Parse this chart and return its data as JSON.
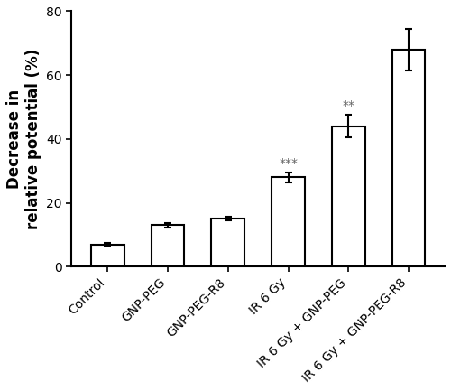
{
  "categories": [
    "Control",
    "GNP-PEG",
    "GNP-PEG-R8",
    "IR 6 Gy",
    "IR 6 Gy + GNP-PEG",
    "IR 6 Gy + GNP-PEG-R8"
  ],
  "values": [
    7.0,
    13.0,
    15.2,
    28.0,
    44.0,
    68.0
  ],
  "errors": [
    0.5,
    0.7,
    0.6,
    1.5,
    3.5,
    6.5
  ],
  "significance": [
    "",
    "",
    "",
    "***",
    "**",
    ""
  ],
  "ylabel": "Decrease in\nrelative potential (%)",
  "ylim": [
    0,
    80
  ],
  "yticks": [
    0,
    20,
    40,
    60,
    80
  ],
  "bar_color": "#ffffff",
  "bar_edgecolor": "#000000",
  "bar_linewidth": 1.5,
  "error_color": "#000000",
  "sig_color": "#666666",
  "sig_fontsize": 10,
  "ylabel_fontsize": 12,
  "tick_fontsize": 10,
  "xlabel_rotation": 45,
  "bar_width": 0.55,
  "background_color": "#ffffff",
  "capsize": 3,
  "fig_width": 5.0,
  "fig_height": 4.33,
  "dpi": 100
}
